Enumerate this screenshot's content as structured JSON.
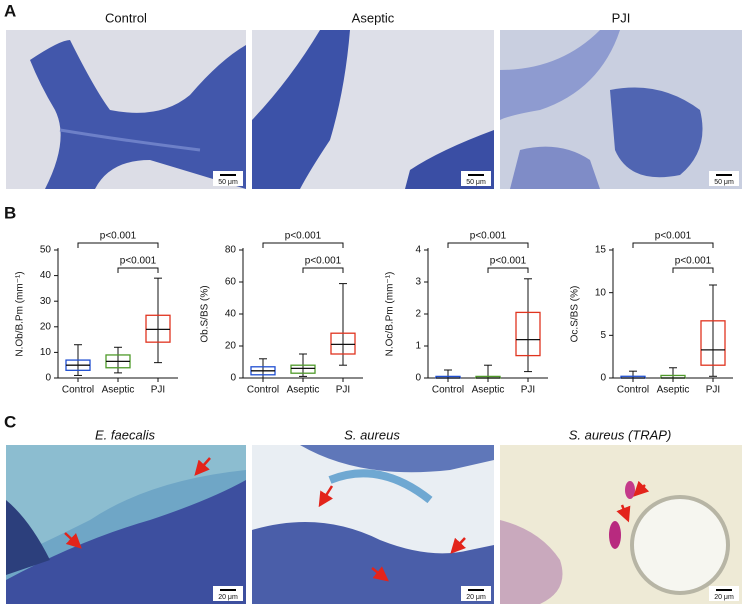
{
  "panels": {
    "a": {
      "label": "A",
      "images": [
        {
          "title": "Control"
        },
        {
          "title": "Aseptic"
        },
        {
          "title": "PJI"
        }
      ],
      "scale_bar": "50 μm"
    },
    "b": {
      "label": "B"
    },
    "c": {
      "label": "C",
      "images": [
        {
          "title": "E. faecalis"
        },
        {
          "title": "S. aureus"
        },
        {
          "title": "S. aureus (TRAP)"
        }
      ],
      "scale_bar": "20 μm"
    }
  },
  "chart_data": [
    {
      "type": "box",
      "y_label": "N.Ob/B.Pm (mm⁻¹)",
      "categories": [
        "Control",
        "Aseptic",
        "PJI"
      ],
      "colors": [
        "#1f4fd1",
        "#4f9a2a",
        "#e0341f"
      ],
      "boxes": [
        {
          "min": 1,
          "q1": 3,
          "median": 5,
          "q3": 7,
          "max": 13
        },
        {
          "min": 2,
          "q1": 4,
          "median": 6.5,
          "q3": 9,
          "max": 12
        },
        {
          "min": 6,
          "q1": 14,
          "median": 19,
          "q3": 24.5,
          "max": 39
        }
      ],
      "ylim": [
        0,
        50
      ],
      "yticks": [
        0,
        10,
        20,
        30,
        40,
        50
      ],
      "annotations": [
        {
          "from": 0,
          "to": 2,
          "label": "p<0.001"
        },
        {
          "from": 1,
          "to": 2,
          "label": "p<0.001"
        }
      ]
    },
    {
      "type": "box",
      "y_label": "Ob.S/BS (%)",
      "categories": [
        "Control",
        "Aseptic",
        "PJI"
      ],
      "colors": [
        "#1f4fd1",
        "#4f9a2a",
        "#e0341f"
      ],
      "boxes": [
        {
          "min": 0,
          "q1": 2,
          "median": 4.5,
          "q3": 7,
          "max": 12
        },
        {
          "min": 1,
          "q1": 3,
          "median": 6,
          "q3": 8,
          "max": 15
        },
        {
          "min": 8,
          "q1": 15,
          "median": 21,
          "q3": 28,
          "max": 59
        }
      ],
      "ylim": [
        0,
        80
      ],
      "yticks": [
        0,
        20,
        40,
        60,
        80
      ],
      "annotations": [
        {
          "from": 0,
          "to": 2,
          "label": "p<0.001"
        },
        {
          "from": 1,
          "to": 2,
          "label": "p<0.001"
        }
      ]
    },
    {
      "type": "box",
      "y_label": "N.Oc/B.Pm (mm⁻¹)",
      "categories": [
        "Control",
        "Aseptic",
        "PJI"
      ],
      "colors": [
        "#1f4fd1",
        "#4f9a2a",
        "#e0341f"
      ],
      "boxes": [
        {
          "min": 0,
          "q1": 0,
          "median": 0,
          "q3": 0.05,
          "max": 0.25
        },
        {
          "min": 0,
          "q1": 0,
          "median": 0,
          "q3": 0.05,
          "max": 0.4
        },
        {
          "min": 0.2,
          "q1": 0.7,
          "median": 1.2,
          "q3": 2.05,
          "max": 3.1
        }
      ],
      "ylim": [
        0,
        4
      ],
      "yticks": [
        0,
        1,
        2,
        3,
        4
      ],
      "annotations": [
        {
          "from": 0,
          "to": 2,
          "label": "p<0.001"
        },
        {
          "from": 1,
          "to": 2,
          "label": "p<0.001"
        }
      ]
    },
    {
      "type": "box",
      "y_label": "Oc.S/BS (%)",
      "categories": [
        "Control",
        "Aseptic",
        "PJI"
      ],
      "colors": [
        "#1f4fd1",
        "#4f9a2a",
        "#e0341f"
      ],
      "boxes": [
        {
          "min": 0,
          "q1": 0,
          "median": 0,
          "q3": 0.2,
          "max": 0.8
        },
        {
          "min": 0,
          "q1": 0,
          "median": 0,
          "q3": 0.3,
          "max": 1.2
        },
        {
          "min": 0.2,
          "q1": 1.5,
          "median": 3.3,
          "q3": 6.7,
          "max": 10.9
        }
      ],
      "ylim": [
        0,
        15
      ],
      "yticks": [
        0,
        5,
        10,
        15
      ],
      "annotations": [
        {
          "from": 0,
          "to": 2,
          "label": "p<0.001"
        },
        {
          "from": 1,
          "to": 2,
          "label": "p<0.001"
        }
      ]
    }
  ]
}
